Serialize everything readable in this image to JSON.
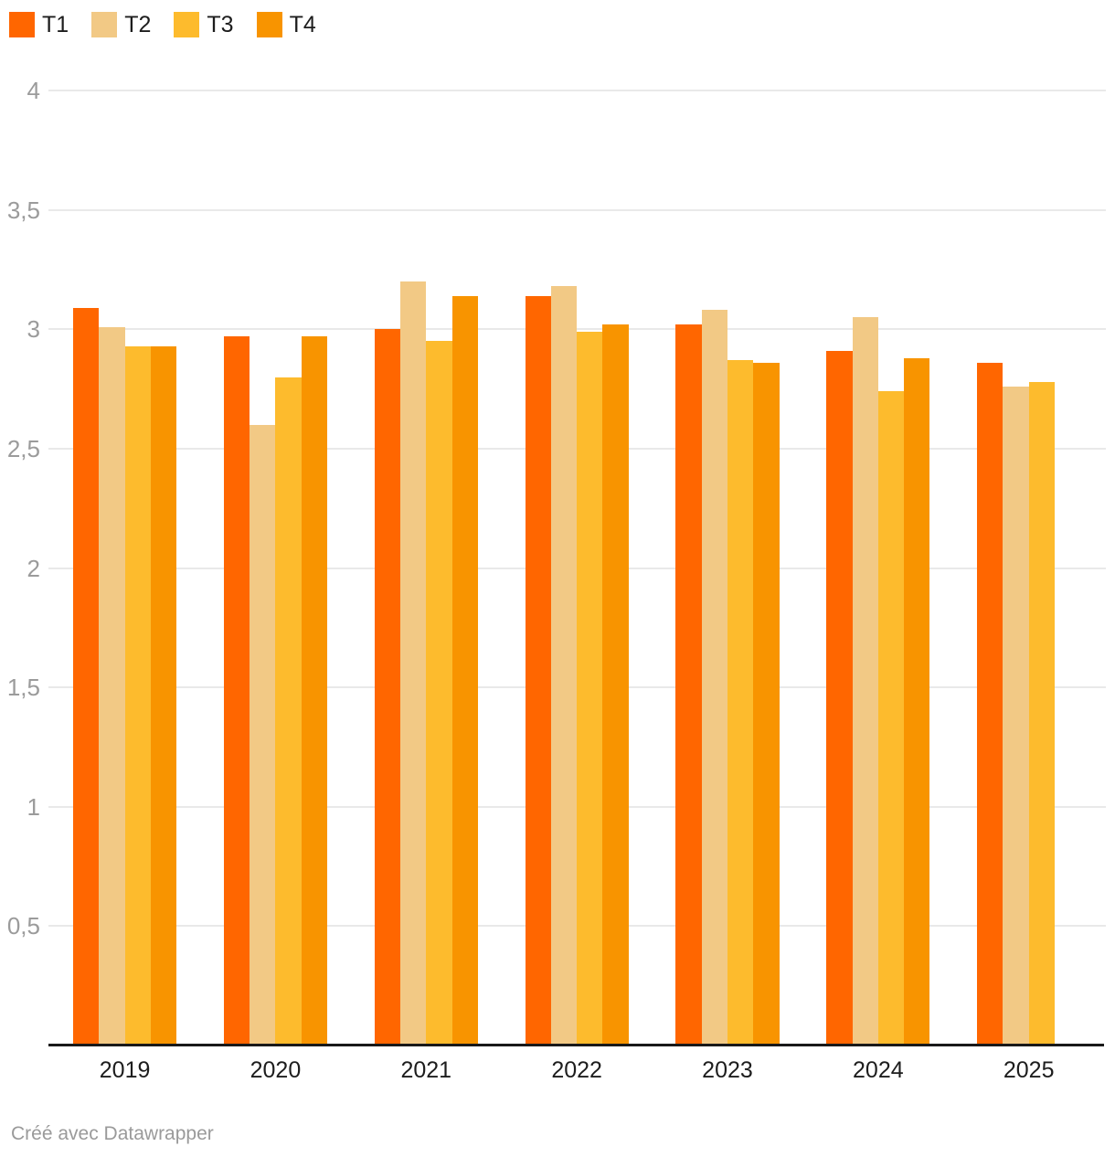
{
  "footer": {
    "credit": "Créé avec Datawrapper"
  },
  "colors": {
    "background": "#ffffff",
    "gridline": "#e9e9e9",
    "axis_line": "#191919",
    "ytick_text": "#9b9b9b",
    "xtick_text": "#1d1d1d",
    "legend_text": "#1d1d1d",
    "credit_text": "#9a9a9a"
  },
  "chart_data": {
    "type": "bar",
    "title": "",
    "xlabel": "",
    "ylabel": "",
    "grid": true,
    "legend_position": "top-left",
    "categories": [
      "2019",
      "2020",
      "2021",
      "2022",
      "2023",
      "2024",
      "2025"
    ],
    "series": [
      {
        "name": "T1",
        "color": "#ff6600",
        "values": [
          3.09,
          2.97,
          3.0,
          3.14,
          3.02,
          2.91,
          2.86
        ]
      },
      {
        "name": "T2",
        "color": "#f2c985",
        "values": [
          3.01,
          2.6,
          3.2,
          3.18,
          3.08,
          3.05,
          2.76
        ]
      },
      {
        "name": "T3",
        "color": "#fdbb2d",
        "values": [
          2.93,
          2.8,
          2.95,
          2.99,
          2.87,
          2.74,
          2.78
        ]
      },
      {
        "name": "T4",
        "color": "#f89400",
        "values": [
          2.93,
          2.97,
          3.14,
          3.02,
          2.86,
          2.88,
          null
        ]
      }
    ],
    "ylim": [
      0,
      4
    ],
    "yticks": [
      {
        "value": 0.5,
        "label": "0,5"
      },
      {
        "value": 1,
        "label": "1"
      },
      {
        "value": 1.5,
        "label": "1,5"
      },
      {
        "value": 2,
        "label": "2"
      },
      {
        "value": 2.5,
        "label": "2,5"
      },
      {
        "value": 3,
        "label": "3"
      },
      {
        "value": 3.5,
        "label": "3,5"
      },
      {
        "value": 4,
        "label": "4"
      }
    ]
  }
}
